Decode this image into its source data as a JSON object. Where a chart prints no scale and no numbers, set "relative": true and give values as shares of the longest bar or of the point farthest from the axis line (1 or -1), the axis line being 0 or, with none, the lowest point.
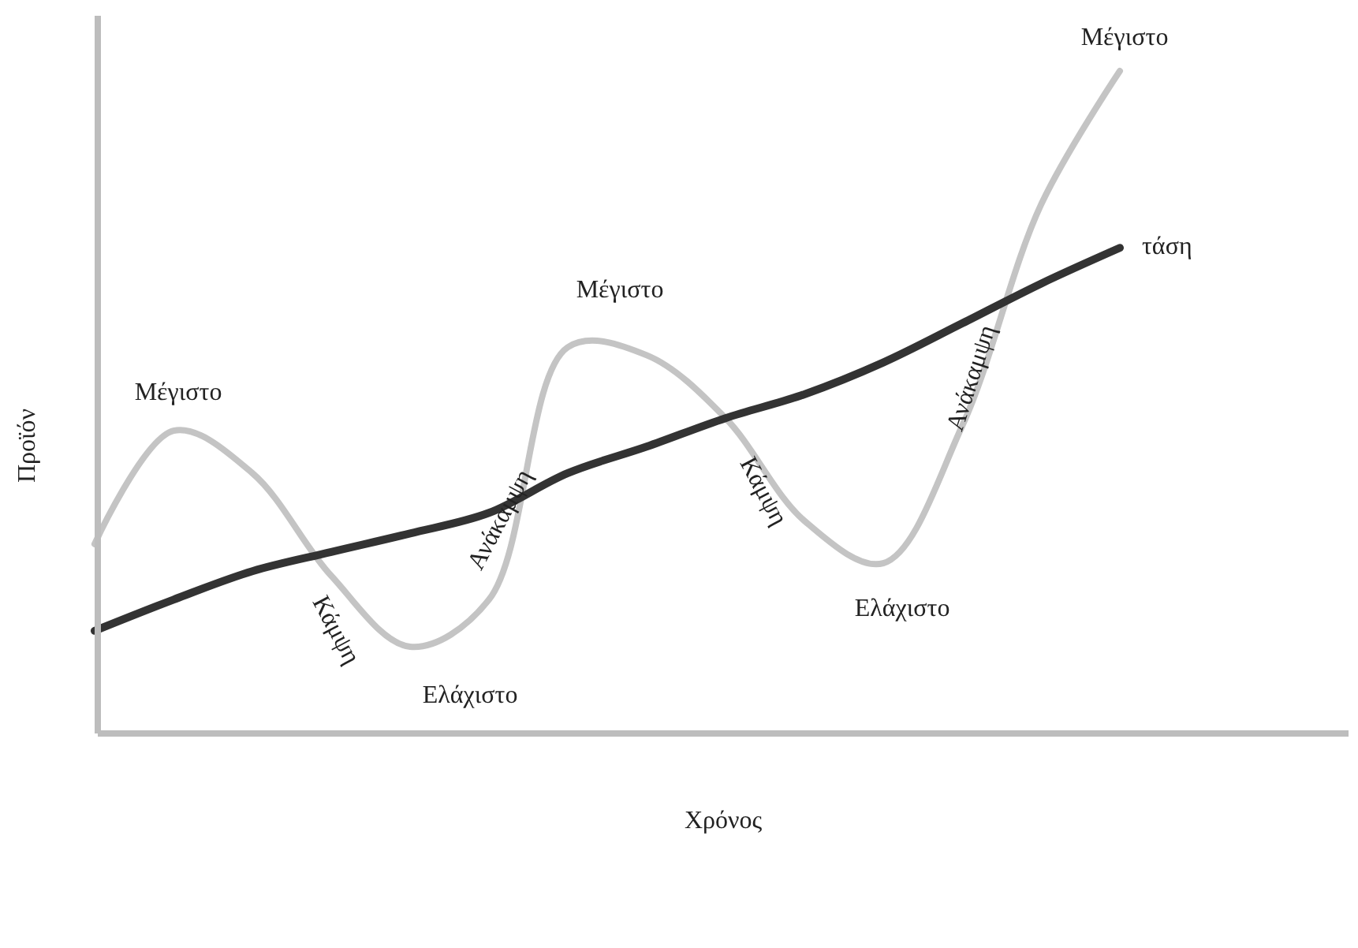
{
  "chart_data": {
    "type": "line",
    "relative": true,
    "xlabel": "Χρόνος",
    "ylabel": "Προϊόν",
    "categories": [
      null,
      null,
      null,
      null,
      null,
      null,
      null,
      null,
      null,
      null,
      null,
      null,
      null,
      null
    ],
    "series": [
      {
        "color": "#c4c4c4",
        "values": [
          0.286,
          0.457,
          0.393,
          0.238,
          0.131,
          0.202,
          0.583,
          0.571,
          0.476,
          0.321,
          0.257,
          0.464,
          0.798,
          1
        ]
      },
      {
        "name": "τάση",
        "color": "#333333",
        "values": [
          0.155,
          0.202,
          0.245,
          0.274,
          0.302,
          0.333,
          0.393,
          0.433,
          0.476,
          0.512,
          0.56,
          0.619,
          0.679,
          0.733
        ]
      }
    ],
    "annotations": [
      "Μέγιστο",
      "Κάμψη",
      "Ελάχιστο",
      "Ανάκαμψη",
      "Μέγιστο",
      "Κάμψη",
      "Ελάχιστο",
      "Ανάκαμψη",
      "Μέγιστο"
    ]
  }
}
